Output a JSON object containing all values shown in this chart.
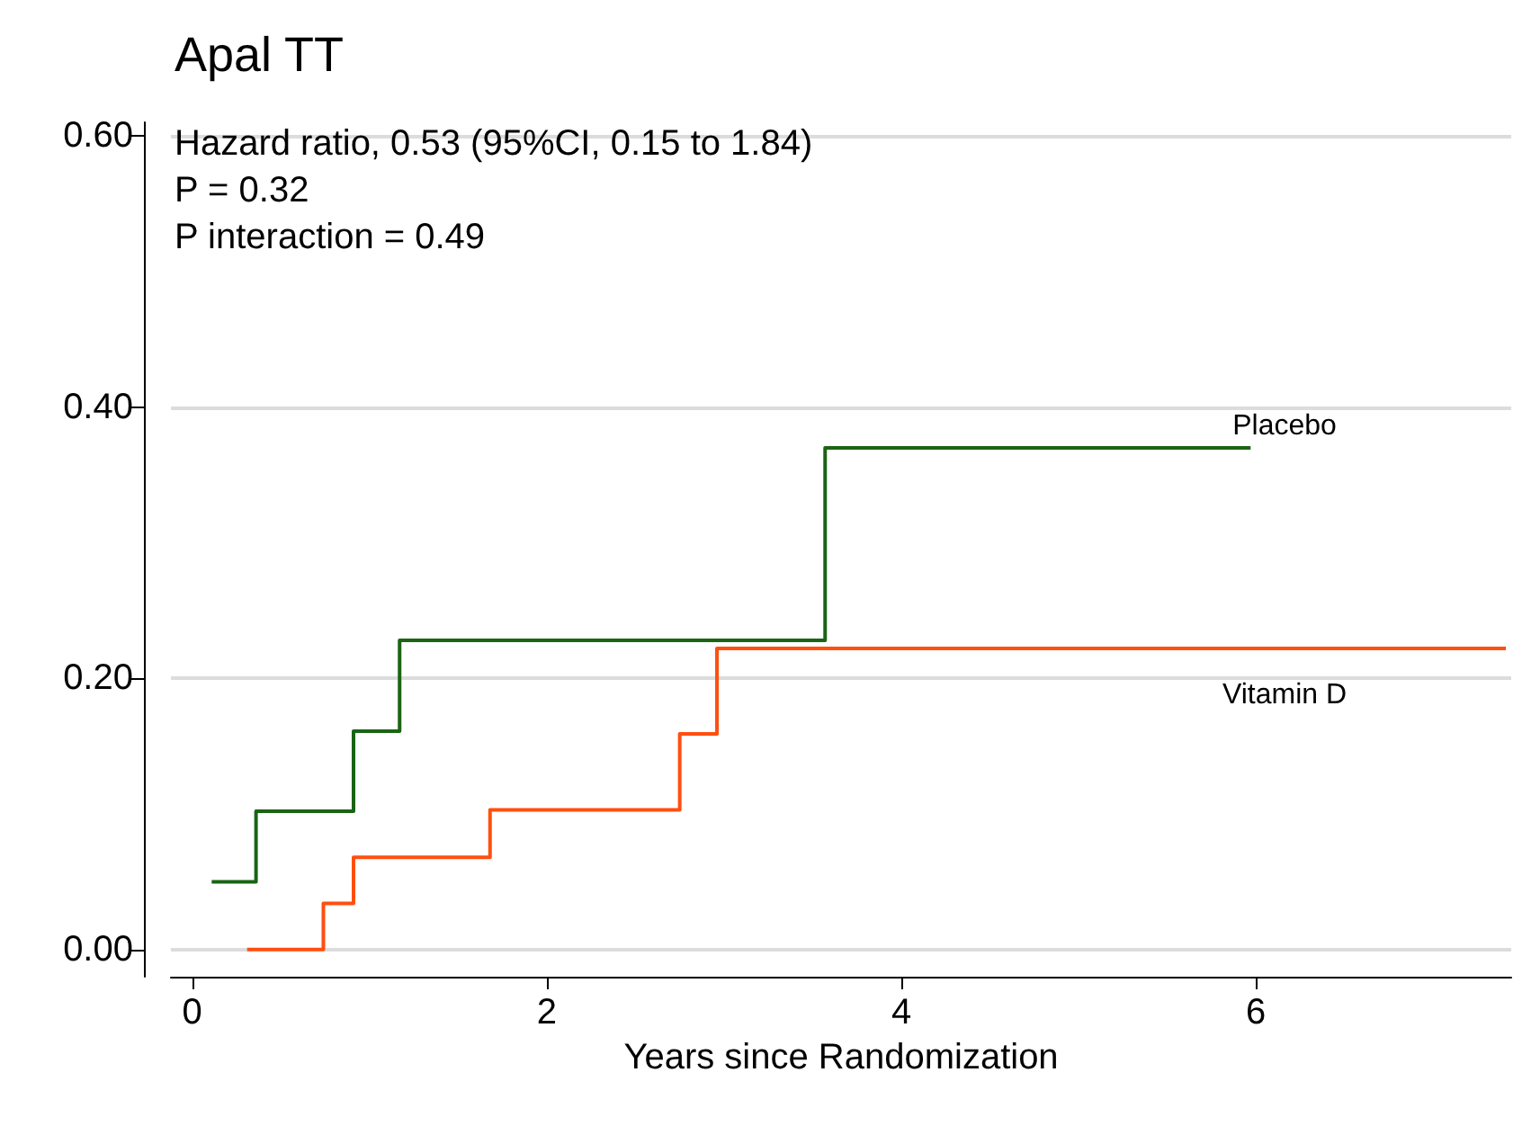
{
  "chart_data": {
    "type": "step",
    "title": "Apal TT",
    "xlabel": "Years since Randomization",
    "annotations": [
      "Hazard ratio, 0.53 (95%CI, 0.15 to 1.84)",
      "P = 0.32",
      "P interaction = 0.49"
    ],
    "series": [
      {
        "name": "Placebo",
        "color": "#1a6414",
        "x": [
          0.11,
          0.36,
          0.91,
          1.17,
          3.57,
          5.97
        ],
        "values": [
          0.05,
          0.102,
          0.161,
          0.228,
          0.37,
          0.37
        ]
      },
      {
        "name": "Vitamin D",
        "color": "#ff4f0f",
        "x": [
          0.31,
          0.74,
          0.91,
          1.68,
          2.75,
          2.96,
          7.41
        ],
        "values": [
          0,
          0.034,
          0.068,
          0.103,
          0.159,
          0.222,
          0.222
        ]
      }
    ],
    "xlim": [
      -0.12,
      7.44
    ],
    "xticks": [
      0,
      2,
      4,
      6
    ],
    "ylim": [
      -0.02,
      0.61
    ],
    "yticks": [
      {
        "value": 0,
        "label": "0.00"
      },
      {
        "value": 0.2,
        "label": "0.20"
      },
      {
        "value": 0.4,
        "label": "0.40"
      },
      {
        "value": 0.6,
        "label": "0.60"
      }
    ],
    "grid": "y",
    "legend": false,
    "marker": "none",
    "line_style": "solid"
  }
}
